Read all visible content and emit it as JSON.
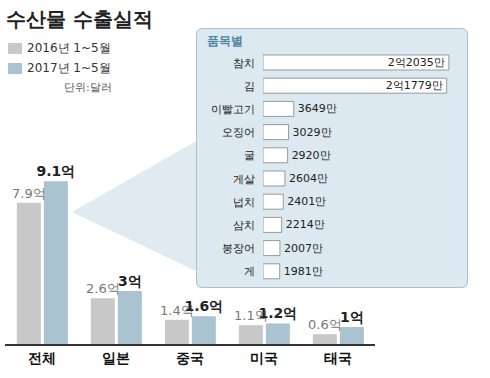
{
  "chart_data": [
    {
      "type": "bar",
      "title": "수산물 수출실적",
      "subtitle": "단위:달러",
      "categories": [
        "전체",
        "일본",
        "중국",
        "미국",
        "태국"
      ],
      "series": [
        {
          "name": "2016년 1~5월",
          "color": "#c8c8c8",
          "values": [
            7.9,
            2.6,
            1.4,
            1.1,
            0.6
          ],
          "value_labels": [
            "7.9억",
            "2.6억",
            "1.4억",
            "1.1억",
            "0.6억"
          ]
        },
        {
          "name": "2017년 1~5월",
          "color": "#a9c3d1",
          "values": [
            9.1,
            3,
            1.6,
            1.2,
            1
          ],
          "value_labels": [
            "9.1억",
            "3억",
            "1.6억",
            "1.2억",
            "1억"
          ]
        }
      ],
      "ylim": [
        0,
        10
      ],
      "data_labels": true,
      "tick_labels": "x",
      "legend": "upper left",
      "grid": false
    },
    {
      "type": "bar",
      "title": "품목별",
      "orientation": "horizontal",
      "categories": [
        "참치",
        "김",
        "이빨고기",
        "오징어",
        "굴",
        "게살",
        "넙치",
        "삼치",
        "붕장어",
        "게"
      ],
      "values": [
        22035,
        21779,
        3649,
        3029,
        2920,
        2604,
        2401,
        2214,
        2007,
        1981
      ],
      "value_labels": [
        "2억2035만",
        "2억1779만",
        "3649만",
        "3029만",
        "2920만",
        "2604만",
        "2401만",
        "2214만",
        "2007만",
        "1981만"
      ],
      "color": "#ffffff",
      "xlim": [
        0,
        23000
      ],
      "data_labels": true,
      "tick_labels": "y"
    }
  ]
}
